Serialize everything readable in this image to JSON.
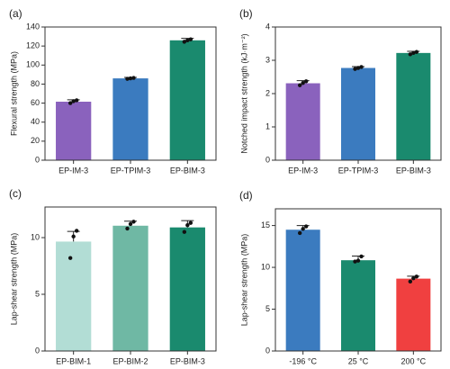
{
  "chart_data": [
    {
      "type": "bar",
      "label": "(a)",
      "ylabel": "Flexural strength (MPa)",
      "categories": [
        "EP-IM-3",
        "EP-TPIM-3",
        "EP-BIM-3"
      ],
      "values": [
        61.5,
        86,
        126
      ],
      "error": [
        2,
        1,
        2
      ],
      "points": [
        [
          60,
          62,
          63
        ],
        [
          85.5,
          86,
          86.5
        ],
        [
          124.5,
          126,
          127
        ]
      ],
      "colors": [
        "#8a62bd",
        "#3b7bbf",
        "#1a8a6e"
      ],
      "ylim": [
        0,
        140
      ],
      "yticks": [
        0,
        20,
        40,
        60,
        80,
        100,
        120,
        140
      ]
    },
    {
      "type": "bar",
      "label": "(b)",
      "ylabel": "Notched impact strength (kJ·m⁻²)",
      "categories": [
        "EP-IM-3",
        "EP-TPIM-3",
        "EP-BIM-3"
      ],
      "values": [
        2.31,
        2.77,
        3.22
      ],
      "error": [
        0.08,
        0.04,
        0.05
      ],
      "points": [
        [
          2.25,
          2.32,
          2.37
        ],
        [
          2.74,
          2.77,
          2.8
        ],
        [
          3.18,
          3.22,
          3.25
        ]
      ],
      "colors": [
        "#8a62bd",
        "#3b7bbf",
        "#1a8a6e"
      ],
      "ylim": [
        0,
        4
      ],
      "yticks": [
        0,
        1,
        2,
        3,
        4
      ]
    },
    {
      "type": "bar",
      "label": "(c)",
      "ylabel": "Lap-shear strength (MPa)",
      "categories": [
        "EP-BIM-1",
        "EP-BIM-2",
        "EP-BIM-3"
      ],
      "values": [
        9.65,
        11.05,
        10.9
      ],
      "error": [
        0.9,
        0.4,
        0.6
      ],
      "points": [
        [
          8.2,
          10.1,
          10.6
        ],
        [
          10.8,
          11.2,
          11.4
        ],
        [
          10.5,
          11.1,
          11.3
        ]
      ],
      "colors": [
        "#b2ddd5",
        "#6fb8a4",
        "#1a8a6e"
      ],
      "ylim": [
        0,
        12.7
      ],
      "yticks": [
        0,
        5,
        10
      ]
    },
    {
      "type": "bar",
      "label": "(d)",
      "ylabel": "Lap-shear strength (MPa)",
      "categories": [
        "-196 °C",
        "25 °C",
        "200 °C"
      ],
      "values": [
        14.5,
        10.85,
        8.65
      ],
      "error": [
        0.5,
        0.5,
        0.3
      ],
      "points": [
        [
          14.1,
          14.6,
          14.9
        ],
        [
          10.7,
          10.8,
          11.3
        ],
        [
          8.3,
          8.7,
          8.9
        ]
      ],
      "colors": [
        "#3b7bbf",
        "#1a8a6e",
        "#f04040"
      ],
      "ylim": [
        0,
        17
      ],
      "yticks": [
        0,
        5,
        10,
        15
      ]
    }
  ]
}
